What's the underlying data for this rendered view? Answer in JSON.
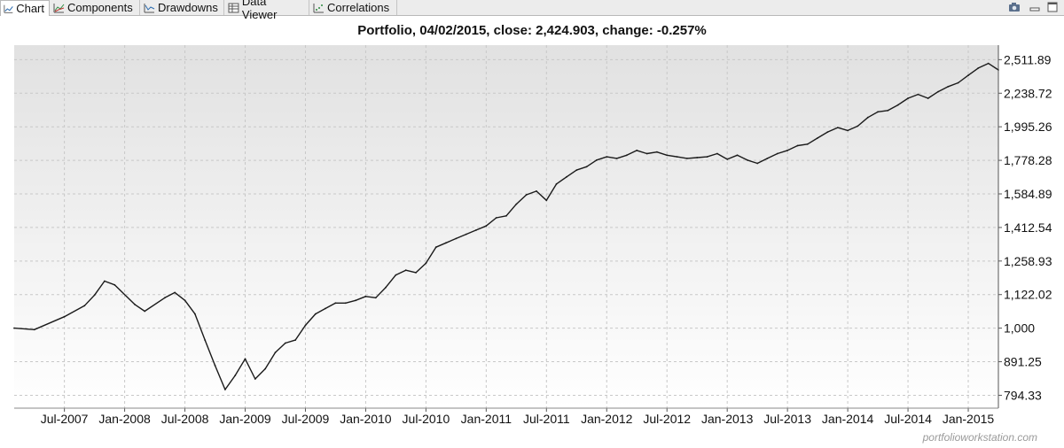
{
  "tabs": [
    {
      "label": "Chart",
      "icon": "line-chart-icon",
      "active": true
    },
    {
      "label": "Components",
      "icon": "components-chart-icon",
      "active": false
    },
    {
      "label": "Drawdowns",
      "icon": "drawdown-chart-icon",
      "active": false
    },
    {
      "label": "Data Viewer",
      "icon": "table-icon",
      "active": false
    },
    {
      "label": "Correlations",
      "icon": "scatter-chart-icon",
      "active": false
    }
  ],
  "window_controls": [
    "camera-icon",
    "minimize-icon",
    "maximize-icon"
  ],
  "watermark": "portfolioworkstation.com",
  "chart_data": {
    "type": "line",
    "title": "Portfolio, 04/02/2015, close: 2,424.903, change: -0.257%",
    "y_scale": "log",
    "ylim": [
      760,
      2640
    ],
    "y_ticks": [
      794.33,
      891.25,
      1000,
      1122.02,
      1258.93,
      1412.54,
      1584.89,
      1778.28,
      1995.26,
      2238.72,
      2511.89
    ],
    "y_tick_labels": [
      "794.33",
      "891.25",
      "1,000",
      "1,122.02",
      "1,258.93",
      "1,412.54",
      "1,584.89",
      "1,778.28",
      "1,995.26",
      "2,238.72",
      "2,511.89"
    ],
    "x_tick_labels": [
      "Jul-2007",
      "Jan-2008",
      "Jul-2008",
      "Jan-2009",
      "Jul-2009",
      "Jan-2010",
      "Jul-2010",
      "Jan-2011",
      "Jul-2011",
      "Jan-2012",
      "Jul-2012",
      "Jan-2013",
      "Jul-2013",
      "Jan-2014",
      "Jul-2014",
      "Jan-2015"
    ],
    "grid": true,
    "series": [
      {
        "x": [
          "2007-02",
          "2007-04",
          "2007-07",
          "2007-09",
          "2007-10",
          "2007-11",
          "2007-12",
          "2008-02",
          "2008-03",
          "2008-05",
          "2008-06",
          "2008-07",
          "2008-08",
          "2008-09",
          "2008-10",
          "2008-11",
          "2008-12",
          "2009-01",
          "2009-02",
          "2009-03",
          "2009-04",
          "2009-05",
          "2009-06",
          "2009-07",
          "2009-08",
          "2009-09",
          "2009-10",
          "2009-11",
          "2009-12",
          "2010-01",
          "2010-02",
          "2010-03",
          "2010-04",
          "2010-05",
          "2010-06",
          "2010-07",
          "2010-08",
          "2010-09",
          "2010-10",
          "2010-11",
          "2010-12",
          "2011-01",
          "2011-02",
          "2011-03",
          "2011-04",
          "2011-05",
          "2011-06",
          "2011-07",
          "2011-08",
          "2011-09",
          "2011-10",
          "2011-11",
          "2011-12",
          "2012-01",
          "2012-02",
          "2012-03",
          "2012-04",
          "2012-05",
          "2012-06",
          "2012-07",
          "2012-08",
          "2012-09",
          "2012-10",
          "2012-11",
          "2012-12",
          "2013-01",
          "2013-02",
          "2013-03",
          "2013-04",
          "2013-05",
          "2013-06",
          "2013-07",
          "2013-08",
          "2013-09",
          "2013-10",
          "2013-11",
          "2013-12",
          "2014-01",
          "2014-02",
          "2014-03",
          "2014-04",
          "2014-05",
          "2014-06",
          "2014-07",
          "2014-08",
          "2014-09",
          "2014-10",
          "2014-11",
          "2014-12",
          "2015-01",
          "2015-02",
          "2015-03",
          "2015-04"
        ],
        "y": [
          1000,
          995,
          1040,
          1080,
          1120,
          1175,
          1160,
          1085,
          1060,
          1110,
          1130,
          1100,
          1050,
          960,
          880,
          810,
          850,
          900,
          840,
          870,
          920,
          950,
          960,
          1010,
          1050,
          1070,
          1090,
          1090,
          1100,
          1115,
          1110,
          1150,
          1200,
          1220,
          1210,
          1250,
          1320,
          1340,
          1360,
          1380,
          1400,
          1420,
          1460,
          1470,
          1530,
          1580,
          1600,
          1550,
          1640,
          1680,
          1720,
          1740,
          1780,
          1800,
          1790,
          1810,
          1840,
          1820,
          1830,
          1810,
          1800,
          1790,
          1795,
          1800,
          1820,
          1785,
          1810,
          1780,
          1760,
          1790,
          1820,
          1840,
          1870,
          1880,
          1920,
          1960,
          1990,
          1970,
          2000,
          2060,
          2100,
          2110,
          2150,
          2200,
          2230,
          2200,
          2250,
          2290,
          2320,
          2380,
          2440,
          2480,
          2425
        ]
      }
    ]
  }
}
